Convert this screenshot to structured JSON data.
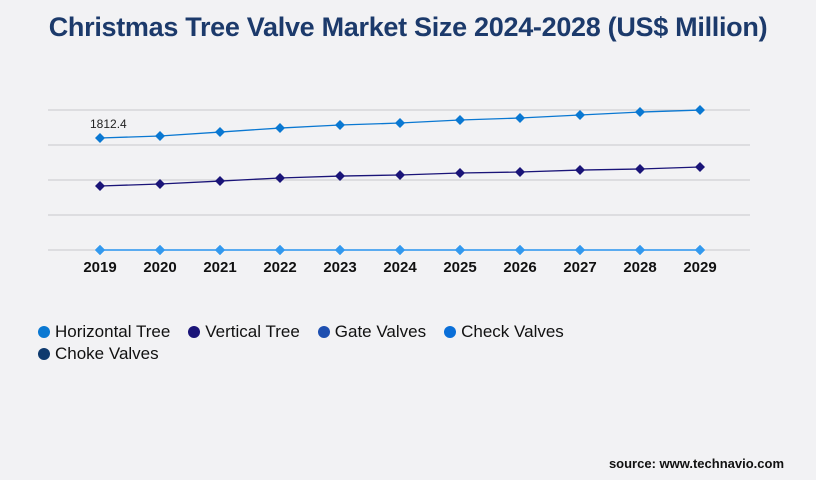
{
  "title": "Christmas Tree Valve Market Size 2024-2028 (US$ Million)",
  "source": "source: www.technavio.com",
  "chart_data": {
    "type": "line",
    "title": "Christmas Tree Valve Market Size 2024-2028 (US$ Million)",
    "categories": [
      "2019",
      "2020",
      "2021",
      "2022",
      "2023",
      "2024",
      "2025",
      "2026",
      "2027",
      "2028",
      "2029"
    ],
    "ylim": [
      0,
      2266
    ],
    "grid": true,
    "legend_placement": "bottom",
    "annotation": "1812.4",
    "series": [
      {
        "name": "Horizontal Tree",
        "color": "#0a78d2",
        "values": [
          1812.4,
          1845,
          1909,
          1974,
          2023,
          2055,
          2104,
          2136,
          2185,
          2233,
          2265
        ]
      },
      {
        "name": "Vertical Tree",
        "color": "#1a1478",
        "values": [
          1036,
          1068,
          1116,
          1165,
          1197,
          1214,
          1246,
          1262,
          1294,
          1311,
          1343
        ]
      },
      {
        "name": "Gate Valves",
        "color": "#1e4fb0",
        "values": [
          0,
          0,
          0,
          0,
          0,
          0,
          0,
          0,
          0,
          0,
          0
        ]
      },
      {
        "name": "Check Valves",
        "color": "#0a6fd8",
        "values": [
          0,
          0,
          0,
          0,
          0,
          0,
          0,
          0,
          0,
          0,
          0
        ]
      },
      {
        "name": "Choke Valves",
        "color": "#0f3a6e",
        "values": [
          0,
          0,
          0,
          0,
          0,
          0,
          0,
          0,
          0,
          0,
          0
        ]
      }
    ]
  }
}
